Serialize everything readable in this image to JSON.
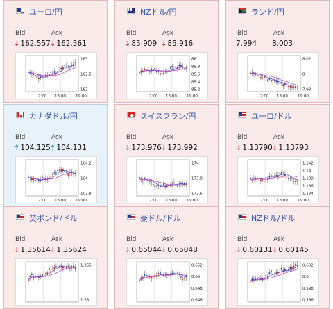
{
  "cards": [
    {
      "pair": "ユーロ/円",
      "flag": "eu",
      "trend": "down",
      "bid_label": "Bid",
      "ask_label": "Ask",
      "bid": "162.557",
      "ask": "162.561",
      "yticks": [
        "163",
        "162.5",
        "162"
      ],
      "xticks": [
        "7:00",
        "13:00",
        "19:00"
      ]
    },
    {
      "pair": "NZドル/円",
      "flag": "nz",
      "trend": "down",
      "bid_label": "Bid",
      "ask_label": "Ask",
      "bid": "85.909",
      "ask": "85.916",
      "yticks": [
        "86",
        "85.8",
        "85.6",
        "85.4",
        "85.2"
      ],
      "xticks": [
        "7:00",
        "13:00",
        "19:00"
      ]
    },
    {
      "pair": "ランド/円",
      "flag": "za",
      "trend": "none",
      "bid_label": "Bid",
      "ask_label": "Ask",
      "bid": "7.994",
      "ask": "8.003",
      "yticks": [
        "8.02",
        "8",
        "7.98"
      ],
      "xticks": [
        "7:00",
        "13:00",
        "19:00"
      ]
    },
    {
      "pair": "カナダドル/円",
      "flag": "ca",
      "trend": "up",
      "bid_label": "Bid",
      "ask_label": "Ask",
      "bid": "104.125",
      "ask": "104.131",
      "yticks": [
        "104.2",
        "104",
        "103.8"
      ],
      "xticks": [
        "7:00",
        "13:00",
        "19:00"
      ]
    },
    {
      "pair": "スイスフラン/円",
      "flag": "ch",
      "trend": "down",
      "bid_label": "Bid",
      "ask_label": "Ask",
      "bid": "173.976",
      "ask": "173.992",
      "yticks": [
        "174",
        "173.8",
        "173.6"
      ],
      "xticks": [
        "7:00",
        "13:00",
        "19:00"
      ]
    },
    {
      "pair": "ユーロ/ドル",
      "flag": "us",
      "trend": "down",
      "bid_label": "Bid",
      "ask_label": "Ask",
      "bid": "1.13790",
      "ask": "1.13793",
      "yticks": [
        "1.142",
        "1.14",
        "1.138",
        "1.136",
        "1.134"
      ],
      "xticks": [
        "7:00",
        "13:00",
        "19:00"
      ]
    },
    {
      "pair": "英ポンド/ドル",
      "flag": "us",
      "trend": "down",
      "bid_label": "Bid",
      "ask_label": "Ask",
      "bid": "1.35614",
      "ask": "1.35624",
      "yticks": [
        "1.355",
        "1.35"
      ],
      "xticks": []
    },
    {
      "pair": "豪ドル/ドル",
      "flag": "us",
      "trend": "down",
      "bid_label": "Bid",
      "ask_label": "Ask",
      "bid": "0.65044",
      "ask": "0.65048",
      "yticks": [
        "0.652",
        "0.65",
        "0.648",
        "0.646"
      ],
      "xticks": []
    },
    {
      "pair": "NZドル/ドル",
      "flag": "us",
      "trend": "down",
      "bid_label": "Bid",
      "ask_label": "Ask",
      "bid": "0.60131",
      "ask": "0.60145",
      "yticks": [
        "0.602",
        "0.6",
        "0.598",
        "0.596"
      ],
      "xticks": []
    }
  ],
  "arrows": {
    "down": "↓",
    "up": "↑"
  },
  "colors": {
    "up_candle": "#2a3fb8",
    "down_candle": "#e02020",
    "ma_short": "#4a4ad0",
    "ma_long": "#c040c0"
  }
}
